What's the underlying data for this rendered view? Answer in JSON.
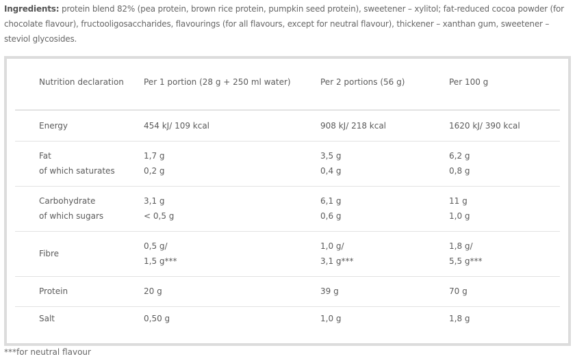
{
  "ingredients": {
    "label": "Ingredients:",
    "text": " protein blend 82% (pea protein, brown rice protein, pumpkin seed protein), sweetener – xylitol; fat-reduced cocoa powder (for chocolate flavour), fructooligosaccharides, flavourings (for all flavours, except for neutral flavour), thickener – xanthan gum, sweetener – steviol glycosides."
  },
  "table": {
    "headers": [
      "Nutrition declaration",
      "Per 1 portion (28 g + 250 ml water)",
      "Per 2 portions (56 g)",
      "Per 100 g"
    ],
    "rows": [
      {
        "label": [
          "Energy"
        ],
        "c1": [
          "454 kJ/ 109 kcal"
        ],
        "c2": [
          "908 kJ/ 218 kcal"
        ],
        "c3": [
          "1620 kJ/ 390 kcal"
        ]
      },
      {
        "label": [
          "Fat",
          "of which saturates"
        ],
        "c1": [
          "1,7 g",
          "0,2 g"
        ],
        "c2": [
          "3,5 g",
          "0,4 g"
        ],
        "c3": [
          "6,2 g",
          "0,8 g"
        ]
      },
      {
        "label": [
          "Carbohydrate",
          "of which sugars"
        ],
        "c1": [
          "3,1 g",
          "< 0,5 g"
        ],
        "c2": [
          "6,1 g",
          "0,6 g"
        ],
        "c3": [
          "11 g",
          "1,0 g"
        ]
      },
      {
        "label": [
          "Fibre"
        ],
        "c1": [
          "0,5 g/",
          "1,5 g***"
        ],
        "c2": [
          "1,0 g/",
          "3,1 g***"
        ],
        "c3": [
          "1,8 g/",
          "5,5 g***"
        ]
      },
      {
        "label": [
          "Protein"
        ],
        "c1": [
          "20 g"
        ],
        "c2": [
          "39 g"
        ],
        "c3": [
          "70 g"
        ]
      },
      {
        "label": [
          "Salt"
        ],
        "c1": [
          "0,50 g"
        ],
        "c2": [
          "1,0 g"
        ],
        "c3": [
          "1,8 g"
        ]
      }
    ]
  },
  "footnote": "***for neutral flavour"
}
